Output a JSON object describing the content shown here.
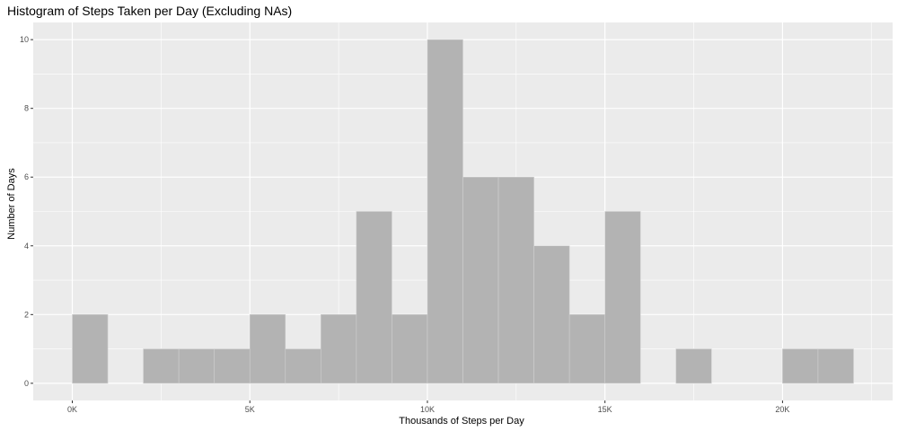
{
  "chart_data": {
    "type": "bar",
    "title": "Histogram of Steps Taken per Day (Excluding NAs)",
    "xlabel": "Thousands of Steps per Day",
    "ylabel": "Number of Days",
    "bin_width": 1000,
    "bins": [
      {
        "start": 0,
        "end": 1000,
        "count": 2
      },
      {
        "start": 1000,
        "end": 2000,
        "count": 0
      },
      {
        "start": 2000,
        "end": 3000,
        "count": 1
      },
      {
        "start": 3000,
        "end": 4000,
        "count": 1
      },
      {
        "start": 4000,
        "end": 5000,
        "count": 1
      },
      {
        "start": 5000,
        "end": 6000,
        "count": 2
      },
      {
        "start": 6000,
        "end": 7000,
        "count": 1
      },
      {
        "start": 7000,
        "end": 8000,
        "count": 2
      },
      {
        "start": 8000,
        "end": 9000,
        "count": 5
      },
      {
        "start": 9000,
        "end": 10000,
        "count": 2
      },
      {
        "start": 10000,
        "end": 11000,
        "count": 10
      },
      {
        "start": 11000,
        "end": 12000,
        "count": 6
      },
      {
        "start": 12000,
        "end": 13000,
        "count": 6
      },
      {
        "start": 13000,
        "end": 14000,
        "count": 4
      },
      {
        "start": 14000,
        "end": 15000,
        "count": 2
      },
      {
        "start": 15000,
        "end": 16000,
        "count": 5
      },
      {
        "start": 16000,
        "end": 17000,
        "count": 0
      },
      {
        "start": 17000,
        "end": 18000,
        "count": 1
      },
      {
        "start": 18000,
        "end": 19000,
        "count": 0
      },
      {
        "start": 19000,
        "end": 20000,
        "count": 0
      },
      {
        "start": 20000,
        "end": 21000,
        "count": 1
      },
      {
        "start": 21000,
        "end": 22000,
        "count": 1
      }
    ],
    "x_ticks": [
      {
        "value": 0,
        "label": "0K"
      },
      {
        "value": 5000,
        "label": "5K"
      },
      {
        "value": 10000,
        "label": "10K"
      },
      {
        "value": 15000,
        "label": "15K"
      },
      {
        "value": 20000,
        "label": "20K"
      }
    ],
    "y_ticks": [
      0,
      2,
      4,
      6,
      8,
      10
    ],
    "xlim": [
      -1100,
      23100
    ],
    "ylim": [
      -0.5,
      10.5
    ],
    "grid": true,
    "colors": {
      "panel": "#ebebeb",
      "gridline": "#ffffff",
      "bar_fill": "#b3b3b3",
      "bar_outline": "#cfcfcf",
      "tick_text": "#4d4d4d"
    }
  }
}
